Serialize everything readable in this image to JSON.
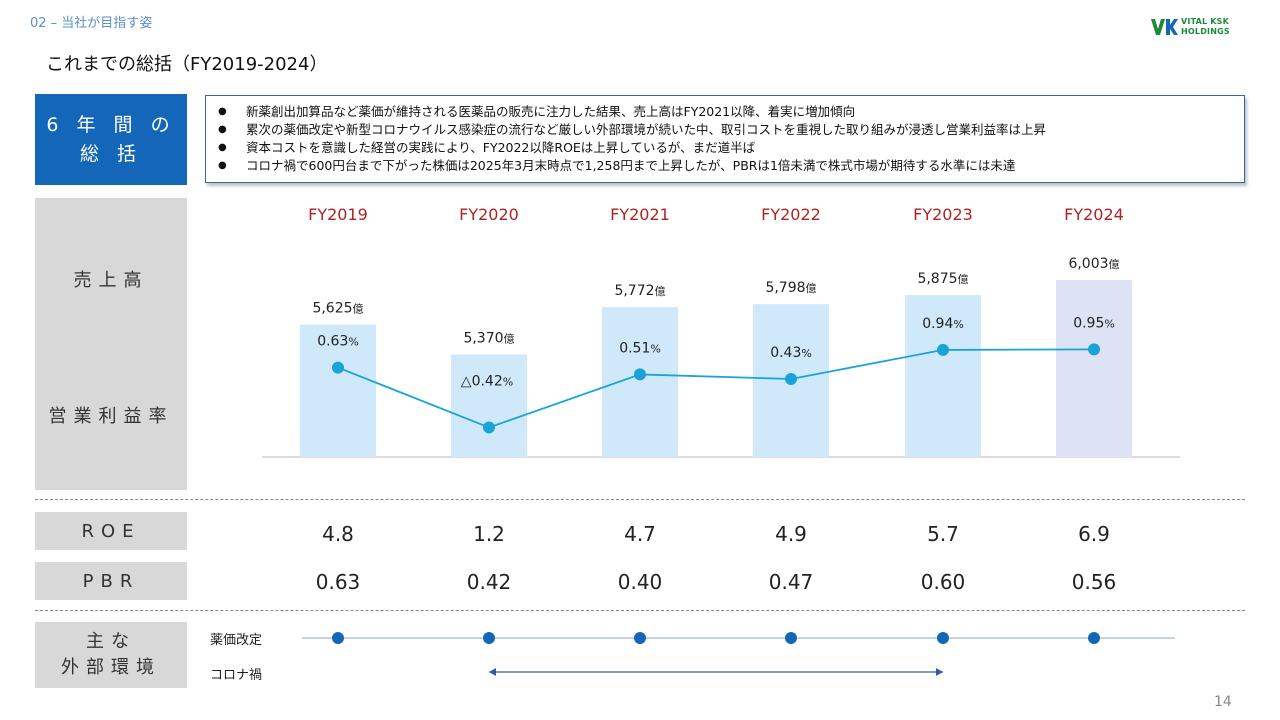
{
  "header": {
    "section": "02 – 当社が目指す姿",
    "title": "これまでの総括（FY2019-2024）",
    "logo_text_1": "VITAL KSK",
    "logo_text_2": "HOLDINGS"
  },
  "summary": {
    "label_1": "6 年 間 の",
    "label_2": "総 括",
    "bullets": [
      "新薬創出加算品など薬価が維持される医薬品の販売に注力した結果、売上高はFY2021以降、着実に増加傾向",
      "累次の薬価改定や新型コロナウイルス感染症の流行など厳しい外部環境が続いた中、取引コストを重視した取り組みが浸透し営業利益率は上昇",
      "資本コストを意識した経営の実践により、FY2022以降ROEは上昇しているが、まだ道半ば",
      "コロナ禍で600円台まで下がった株価は2025年3月末時点で1,258円まで上昇したが、PBRは1倍未満で株式市場が期待する水準には未達"
    ]
  },
  "row_labels": {
    "sales": "売上高",
    "margin": "営業利益率",
    "roe": "ROE",
    "pbr": "PBR",
    "env_1": "主な",
    "env_2": "外部環境"
  },
  "years": [
    "FY2019",
    "FY2020",
    "FY2021",
    "FY2022",
    "FY2023",
    "FY2024"
  ],
  "chart_data": {
    "type": "bar",
    "categories": [
      "FY2019",
      "FY2020",
      "FY2021",
      "FY2022",
      "FY2023",
      "FY2024"
    ],
    "series": [
      {
        "name": "売上高",
        "type": "bar",
        "values": [
          5625,
          5370,
          5772,
          5798,
          5875,
          6003
        ],
        "labels": [
          "5,625",
          "5,370",
          "5,772",
          "5,798",
          "5,875",
          "6,003"
        ],
        "unit": "億"
      },
      {
        "name": "営業利益率",
        "type": "line",
        "values": [
          0.63,
          -0.42,
          0.51,
          0.43,
          0.94,
          0.95
        ],
        "labels": [
          "0.63",
          "△0.42",
          "0.51",
          "0.43",
          "0.94",
          "0.95"
        ],
        "unit": "%"
      }
    ],
    "colors": {
      "bar": "#cfe9fb",
      "bar_last": "#dde3f4",
      "line": "#1aa3d9",
      "year": "#b22222"
    }
  },
  "roe": [
    "4.8",
    "1.2",
    "4.7",
    "4.9",
    "5.7",
    "6.9"
  ],
  "pbr": [
    "0.63",
    "0.42",
    "0.40",
    "0.47",
    "0.60",
    "0.56"
  ],
  "environment": {
    "drug_price_label": "薬価改定",
    "drug_price_years": [
      "FY2019",
      "FY2020",
      "FY2021",
      "FY2022",
      "FY2023",
      "FY2024"
    ],
    "covid_label": "コロナ禍",
    "covid_span": [
      "FY2020",
      "FY2023"
    ],
    "dot_color": "#1466b8"
  },
  "page_number": "14"
}
